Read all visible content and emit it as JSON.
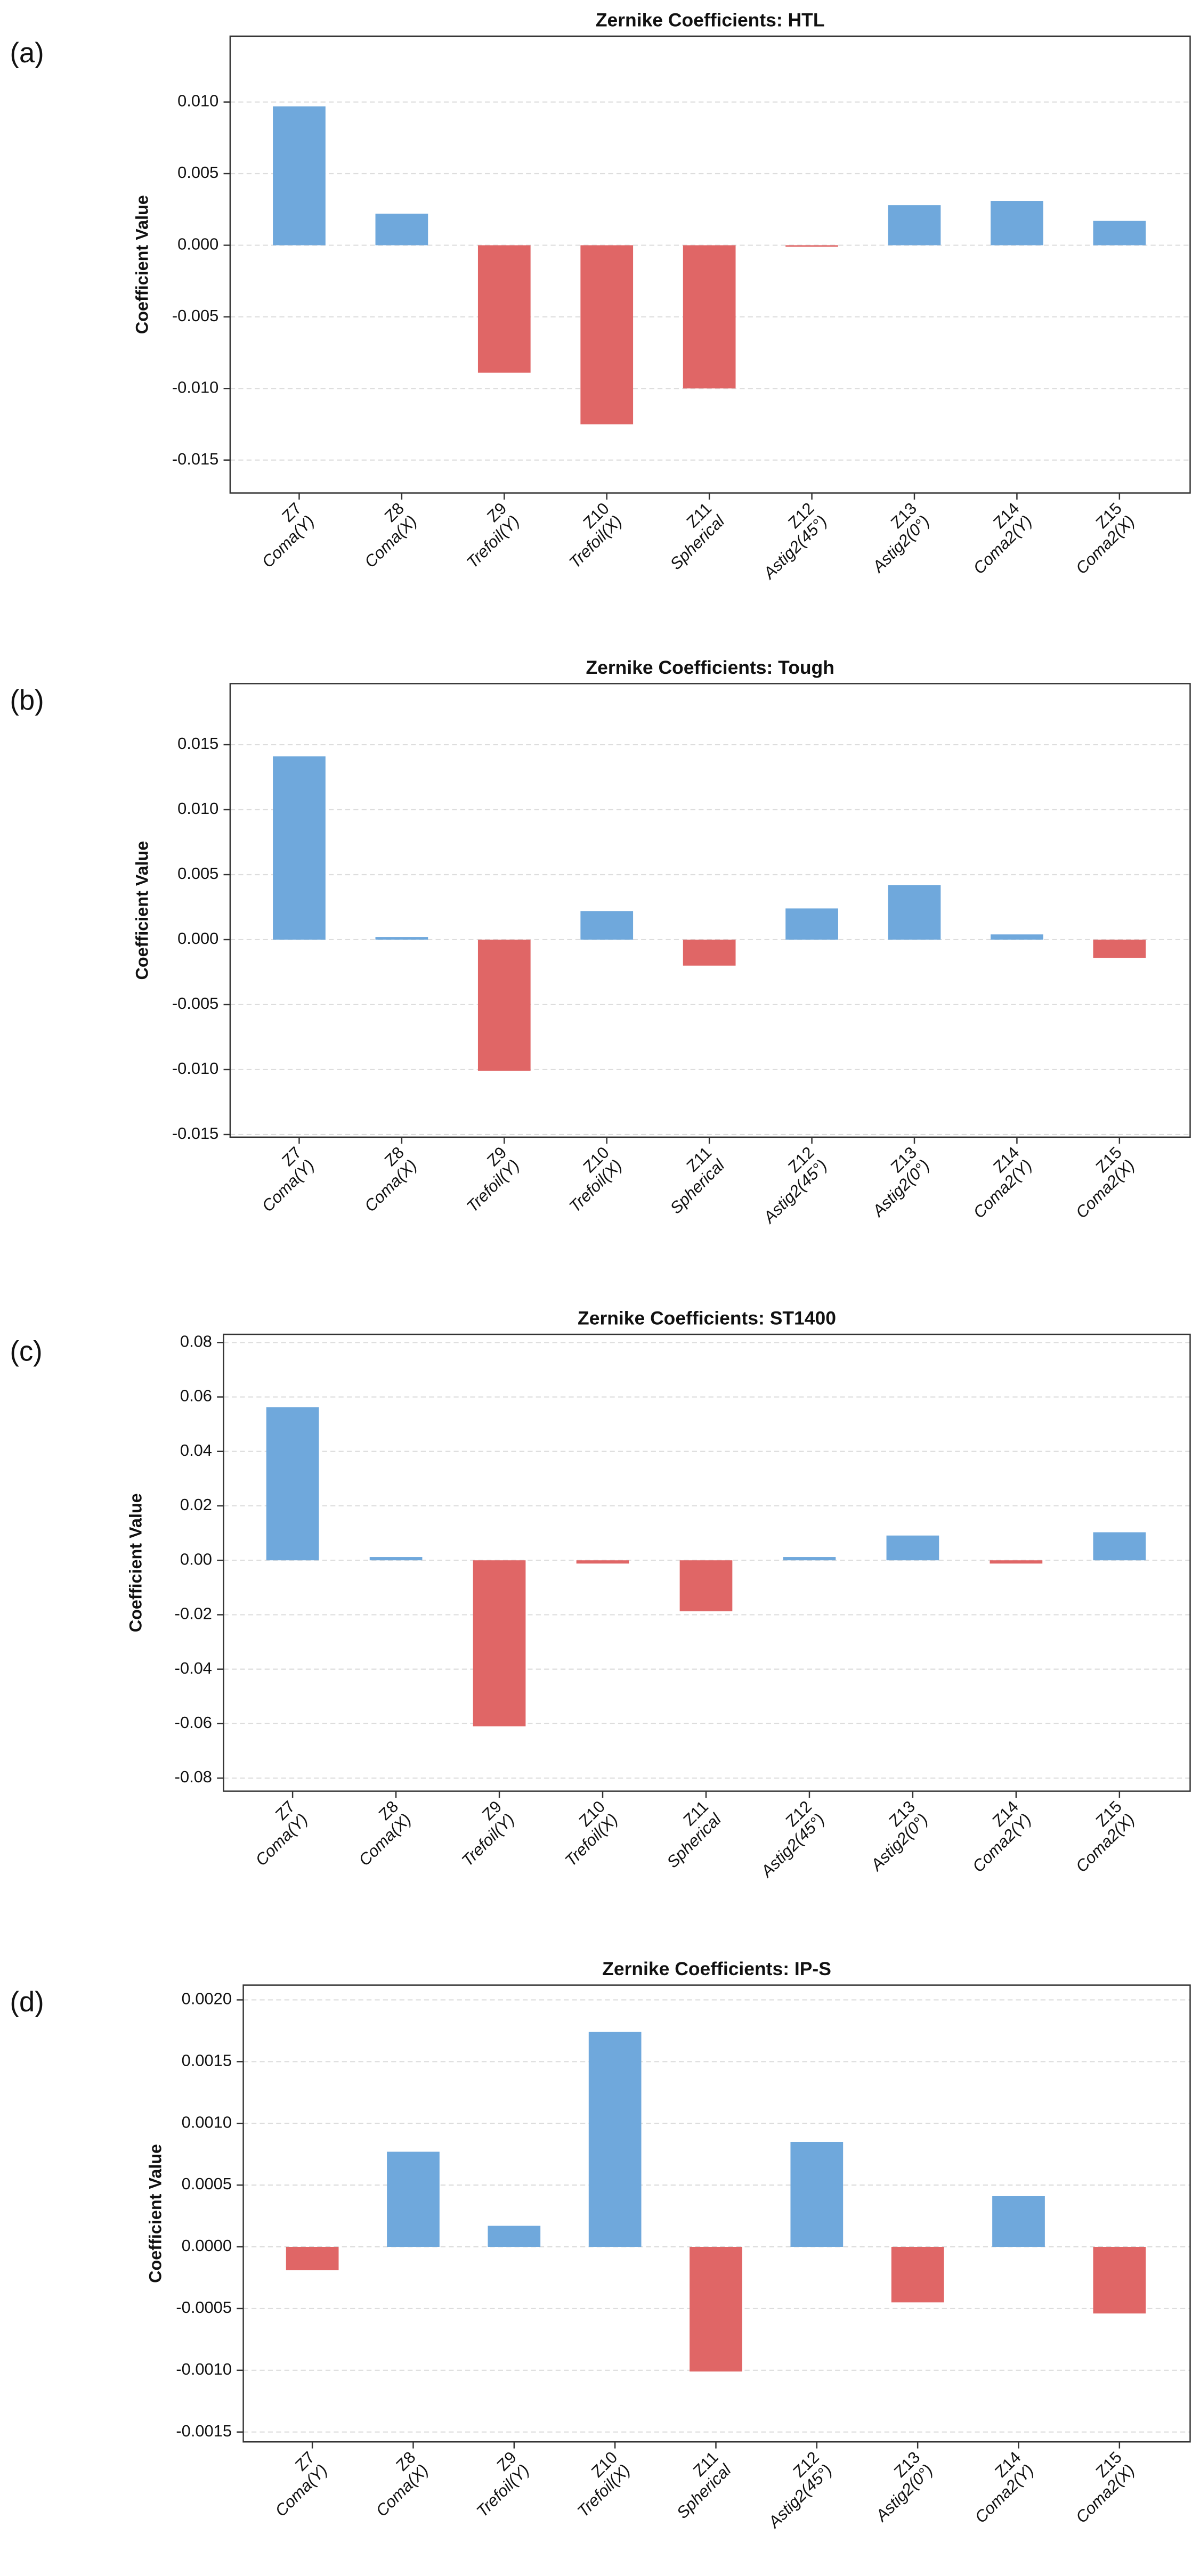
{
  "chart_data": [
    {
      "type": "bar",
      "panel_label": "(a)",
      "title": "Zernike Coefficients: HTL",
      "y_label": "Coefficient Value",
      "categories": [
        [
          "Z7",
          "Coma(Y)"
        ],
        [
          "Z8",
          "Coma(X)"
        ],
        [
          "Z9",
          "Trefoil(Y)"
        ],
        [
          "Z10",
          "Trefoil(X)"
        ],
        [
          "Z11",
          "Spherical"
        ],
        [
          "Z12",
          "Astig2(45°)"
        ],
        [
          "Z13",
          "Astig2(0°)"
        ],
        [
          "Z14",
          "Coma2(Y)"
        ],
        [
          "Z15",
          "Coma2(X)"
        ]
      ],
      "values": [
        0.0097,
        0.0022,
        -0.0089,
        -0.0125,
        -0.01,
        -0.0001,
        0.0028,
        0.0031,
        0.0017
      ],
      "colors": {
        "positive": "#6fa8dc",
        "negative": "#e06666"
      },
      "ylim": [
        -0.0173,
        0.0146
      ],
      "yticks": [
        {
          "value": -0.015,
          "label": "-0.015"
        },
        {
          "value": -0.01,
          "label": "-0.010"
        },
        {
          "value": -0.005,
          "label": "-0.005"
        },
        {
          "value": 0,
          "label": "0.000"
        },
        {
          "value": 0.005,
          "label": "0.005"
        },
        {
          "value": 0.01,
          "label": "0.010"
        }
      ],
      "grid": true
    },
    {
      "type": "bar",
      "panel_label": "(b)",
      "title": "Zernike Coefficients: Tough",
      "y_label": "Coefficient Value",
      "categories": [
        [
          "Z7",
          "Coma(Y)"
        ],
        [
          "Z8",
          "Coma(X)"
        ],
        [
          "Z9",
          "Trefoil(Y)"
        ],
        [
          "Z10",
          "Trefoil(X)"
        ],
        [
          "Z11",
          "Spherical"
        ],
        [
          "Z12",
          "Astig2(45°)"
        ],
        [
          "Z13",
          "Astig2(0°)"
        ],
        [
          "Z14",
          "Coma2(Y)"
        ],
        [
          "Z15",
          "Coma2(X)"
        ]
      ],
      "values": [
        0.0141,
        0.0002,
        -0.0101,
        0.0022,
        -0.002,
        0.0024,
        0.0042,
        0.0004,
        -0.0014
      ],
      "colors": {
        "positive": "#6fa8dc",
        "negative": "#e06666"
      },
      "ylim": [
        -0.0152,
        0.0197
      ],
      "yticks": [
        {
          "value": -0.015,
          "label": "-0.015"
        },
        {
          "value": -0.01,
          "label": "-0.010"
        },
        {
          "value": -0.005,
          "label": "-0.005"
        },
        {
          "value": 0,
          "label": "0.000"
        },
        {
          "value": 0.005,
          "label": "0.005"
        },
        {
          "value": 0.01,
          "label": "0.010"
        },
        {
          "value": 0.015,
          "label": "0.015"
        }
      ],
      "grid": true
    },
    {
      "type": "bar",
      "panel_label": "(c)",
      "title": "Zernike Coefficients: ST1400",
      "y_label": "Coefficient Value",
      "categories": [
        [
          "Z7",
          "Coma(Y)"
        ],
        [
          "Z8",
          "Coma(X)"
        ],
        [
          "Z9",
          "Trefoil(Y)"
        ],
        [
          "Z10",
          "Trefoil(X)"
        ],
        [
          "Z11",
          "Spherical"
        ],
        [
          "Z12",
          "Astig2(45°)"
        ],
        [
          "Z13",
          "Astig2(0°)"
        ],
        [
          "Z14",
          "Coma2(Y)"
        ],
        [
          "Z15",
          "Coma2(X)"
        ]
      ],
      "values": [
        0.0562,
        0.0012,
        -0.061,
        -0.0012,
        -0.0187,
        0.0012,
        0.0091,
        -0.0012,
        0.0103
      ],
      "colors": {
        "positive": "#6fa8dc",
        "negative": "#e06666"
      },
      "ylim": [
        -0.0848,
        0.083
      ],
      "yticks": [
        {
          "value": -0.08,
          "label": "-0.08"
        },
        {
          "value": -0.06,
          "label": "-0.06"
        },
        {
          "value": -0.04,
          "label": "-0.04"
        },
        {
          "value": -0.02,
          "label": "-0.02"
        },
        {
          "value": 0,
          "label": "0.00"
        },
        {
          "value": 0.02,
          "label": "0.02"
        },
        {
          "value": 0.04,
          "label": "0.04"
        },
        {
          "value": 0.06,
          "label": "0.06"
        },
        {
          "value": 0.08,
          "label": "0.08"
        }
      ],
      "grid": true
    },
    {
      "type": "bar",
      "panel_label": "(d)",
      "title": "Zernike Coefficients: IP-S",
      "y_label": "Coefficient Value",
      "categories": [
        [
          "Z7",
          "Coma(Y)"
        ],
        [
          "Z8",
          "Coma(X)"
        ],
        [
          "Z9",
          "Trefoil(Y)"
        ],
        [
          "Z10",
          "Trefoil(X)"
        ],
        [
          "Z11",
          "Spherical"
        ],
        [
          "Z12",
          "Astig2(45°)"
        ],
        [
          "Z13",
          "Astig2(0°)"
        ],
        [
          "Z14",
          "Coma2(Y)"
        ],
        [
          "Z15",
          "Coma2(X)"
        ]
      ],
      "values": [
        -0.00019,
        0.00077,
        0.00017,
        0.00174,
        -0.00101,
        0.00085,
        -0.00045,
        0.00041,
        -0.00054
      ],
      "colors": {
        "positive": "#6fa8dc",
        "negative": "#e06666"
      },
      "ylim": [
        -0.00158,
        0.00212
      ],
      "yticks": [
        {
          "value": -0.0015,
          "label": "-0.0015"
        },
        {
          "value": -0.001,
          "label": "-0.0010"
        },
        {
          "value": -0.0005,
          "label": "-0.0005"
        },
        {
          "value": 0,
          "label": "0.0000"
        },
        {
          "value": 0.0005,
          "label": "0.0005"
        },
        {
          "value": 0.001,
          "label": "0.0010"
        },
        {
          "value": 0.0015,
          "label": "0.0015"
        },
        {
          "value": 0.002,
          "label": "0.0020"
        }
      ],
      "grid": true
    }
  ]
}
